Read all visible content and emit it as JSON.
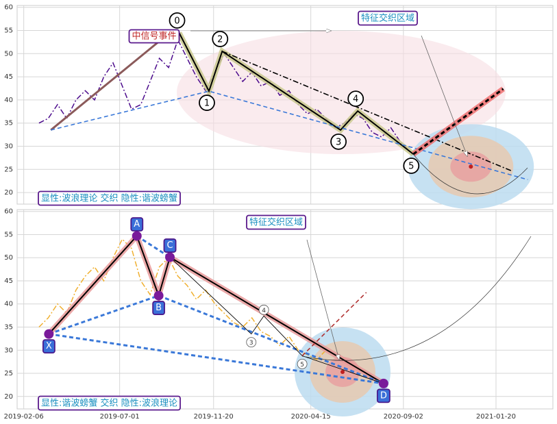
{
  "chart_data": [
    {
      "type": "line",
      "x": [
        "2019-03-01",
        "2019-03-15",
        "2019-03-29",
        "2019-04-12",
        "2019-04-26",
        "2019-05-10",
        "2019-05-24",
        "2019-06-07",
        "2019-06-21",
        "2019-07-05",
        "2019-07-19",
        "2019-08-02",
        "2019-08-16",
        "2019-08-30",
        "2019-09-13",
        "2019-09-27",
        "2019-10-11",
        "2019-10-25",
        "2019-11-08",
        "2019-11-22",
        "2019-12-06",
        "2019-12-20",
        "2020-01-03",
        "2020-01-17",
        "2020-01-31",
        "2020-02-14",
        "2020-02-28",
        "2020-03-13",
        "2020-03-27",
        "2020-04-10",
        "2020-04-24",
        "2020-05-08",
        "2020-05-22",
        "2020-06-05",
        "2020-06-19",
        "2020-07-03",
        "2020-07-17",
        "2020-07-31",
        "2020-08-14",
        "2020-08-28",
        "2020-09-11"
      ],
      "values": [
        35,
        36,
        39,
        36,
        40,
        42,
        40,
        45,
        48,
        43,
        38,
        39,
        44,
        49,
        47,
        53,
        49,
        45,
        42,
        46,
        50,
        47,
        44,
        46,
        43,
        44,
        41,
        42,
        39,
        37,
        38,
        36,
        34,
        35,
        37,
        36,
        33,
        32,
        34,
        31,
        29
      ],
      "color": "#4b0a8c",
      "dash": "dashdot",
      "xlim": [
        "2019-01-27",
        "2021-04-16"
      ],
      "ylim": [
        17.5,
        60.4
      ],
      "yticks": [
        20,
        25,
        30,
        35,
        40,
        45,
        50,
        55,
        60
      ],
      "grid": true,
      "points": {
        "labels": [
          "0",
          "1",
          "2",
          "3",
          "4",
          "5"
        ],
        "x": [
          "2019-09-29",
          "2019-11-13",
          "2019-12-03",
          "2020-05-30",
          "2020-06-25",
          "2020-09-17"
        ],
        "y": [
          54.5,
          41.9,
          50.5,
          33.5,
          37.6,
          28.3
        ],
        "band": "#c9c98e",
        "label_style": "circle"
      },
      "lines": [
        {
          "x": [
            "2019-03-19",
            "2019-09-06"
          ],
          "y": [
            33.5,
            53.5
          ],
          "color": "#8b5a5a",
          "dash": "solid",
          "weight": "heavy"
        },
        {
          "x": [
            "2019-03-19",
            "2019-11-13",
            "2021-03-09"
          ],
          "y": [
            33.5,
            41.9,
            22.8
          ],
          "color": "#3a78d8",
          "dash": "dashed",
          "weight": "normal"
        },
        {
          "x": [
            "2019-12-03",
            "2021-02-14"
          ],
          "y": [
            50.5,
            24.6
          ],
          "color": "#000000",
          "dash": "dashdot",
          "weight": "normal"
        },
        {
          "x": [
            "2020-09-17",
            "2021-01-31"
          ],
          "y": [
            28.3,
            42.4
          ],
          "color": "#ee7070",
          "dash": "solid",
          "weight": "band"
        },
        {
          "x": [
            "2020-09-17",
            "2021-01-31"
          ],
          "y": [
            28.3,
            42.4
          ],
          "color": "#000000",
          "dash": "dashed",
          "weight": "heavy"
        }
      ],
      "zone": {
        "x": "2020-12-13",
        "y": 25.6
      },
      "annotations": [
        "中信号事件",
        "特征交织区域"
      ],
      "caption": "显性:波浪理论 交织 隐性:谐波螃蟹"
    },
    {
      "type": "line",
      "x": [
        "2019-03-01",
        "2019-03-15",
        "2019-03-29",
        "2019-04-12",
        "2019-04-26",
        "2019-05-10",
        "2019-05-24",
        "2019-06-07",
        "2019-06-21",
        "2019-07-05",
        "2019-07-19",
        "2019-08-02",
        "2019-08-16",
        "2019-08-30",
        "2019-09-13",
        "2019-09-27",
        "2019-10-11",
        "2019-10-25",
        "2019-11-08",
        "2019-11-22",
        "2019-12-06",
        "2019-12-20",
        "2020-01-03",
        "2020-01-17",
        "2020-01-31",
        "2020-02-14",
        "2020-02-28",
        "2020-03-13",
        "2020-03-27",
        "2020-04-10",
        "2020-04-24",
        "2020-05-08",
        "2020-05-22"
      ],
      "values": [
        35,
        37,
        40,
        38,
        43,
        46,
        48,
        45,
        50,
        54,
        52,
        45,
        42,
        48,
        50,
        46,
        44,
        41,
        43,
        40,
        38,
        36,
        35,
        37,
        34,
        33,
        31,
        33,
        30,
        29,
        28,
        30,
        29
      ],
      "color": "#f0b030",
      "dash": "dashdot",
      "xlim": [
        "2019-01-27",
        "2021-04-16"
      ],
      "ylim": [
        17.3,
        60.4
      ],
      "xticks": [
        "2019-02-06",
        "2019-07-01",
        "2019-11-20",
        "2020-04-15",
        "2020-09-02",
        "2021-01-20"
      ],
      "yticks": [
        20,
        25,
        30,
        35,
        40,
        45,
        50,
        55,
        60
      ],
      "grid": true,
      "points": {
        "labels": [
          "X",
          "A",
          "B",
          "C",
          "D"
        ],
        "x": [
          "2019-03-16",
          "2019-07-27",
          "2019-08-29",
          "2019-09-15",
          "2020-08-03"
        ],
        "y": [
          33.5,
          54.7,
          41.8,
          50.1,
          22.8
        ],
        "band": "#e89a9a",
        "marker_color": "#7a1a9a",
        "label_style": "box"
      },
      "subpoints": {
        "labels": [
          "3",
          "4",
          "5"
        ],
        "x": [
          "2020-01-16",
          "2020-02-04",
          "2020-04-02"
        ],
        "y": [
          33.5,
          37.4,
          28.8
        ]
      },
      "lines": [
        {
          "x": [
            "2019-03-16",
            "2019-08-29",
            "2020-08-03"
          ],
          "y": [
            33.5,
            41.8,
            22.8
          ],
          "color": "#3a78d8",
          "dash": "dashed",
          "weight": "heavy"
        },
        {
          "x": [
            "2019-03-16",
            "2020-08-03"
          ],
          "y": [
            33.5,
            22.8
          ],
          "color": "#3a78d8",
          "dash": "dashed",
          "weight": "heavy"
        },
        {
          "x": [
            "2019-07-27",
            "2019-09-15"
          ],
          "y": [
            54.7,
            50.1
          ],
          "color": "#3a78d8",
          "dash": "dashed",
          "weight": "heavy"
        },
        {
          "x": [
            "2019-09-15",
            "2020-01-16",
            "2020-02-04",
            "2020-04-02",
            "2020-08-03"
          ],
          "y": [
            50.1,
            33.5,
            37.4,
            28.8,
            22.8
          ],
          "color": "#000000",
          "dash": "solid",
          "weight": "thin"
        },
        {
          "x": [
            "2020-04-02",
            "2020-07-08"
          ],
          "y": [
            28.8,
            42.5
          ],
          "color": "#b03030",
          "dash": "dashed",
          "weight": "normal"
        }
      ],
      "zone": {
        "x": "2020-06-02",
        "y": 25.3
      },
      "annotations": [
        "特征交织区域"
      ],
      "caption": "显性:谐波螃蟹 交织 隐性:波浪理论"
    }
  ]
}
